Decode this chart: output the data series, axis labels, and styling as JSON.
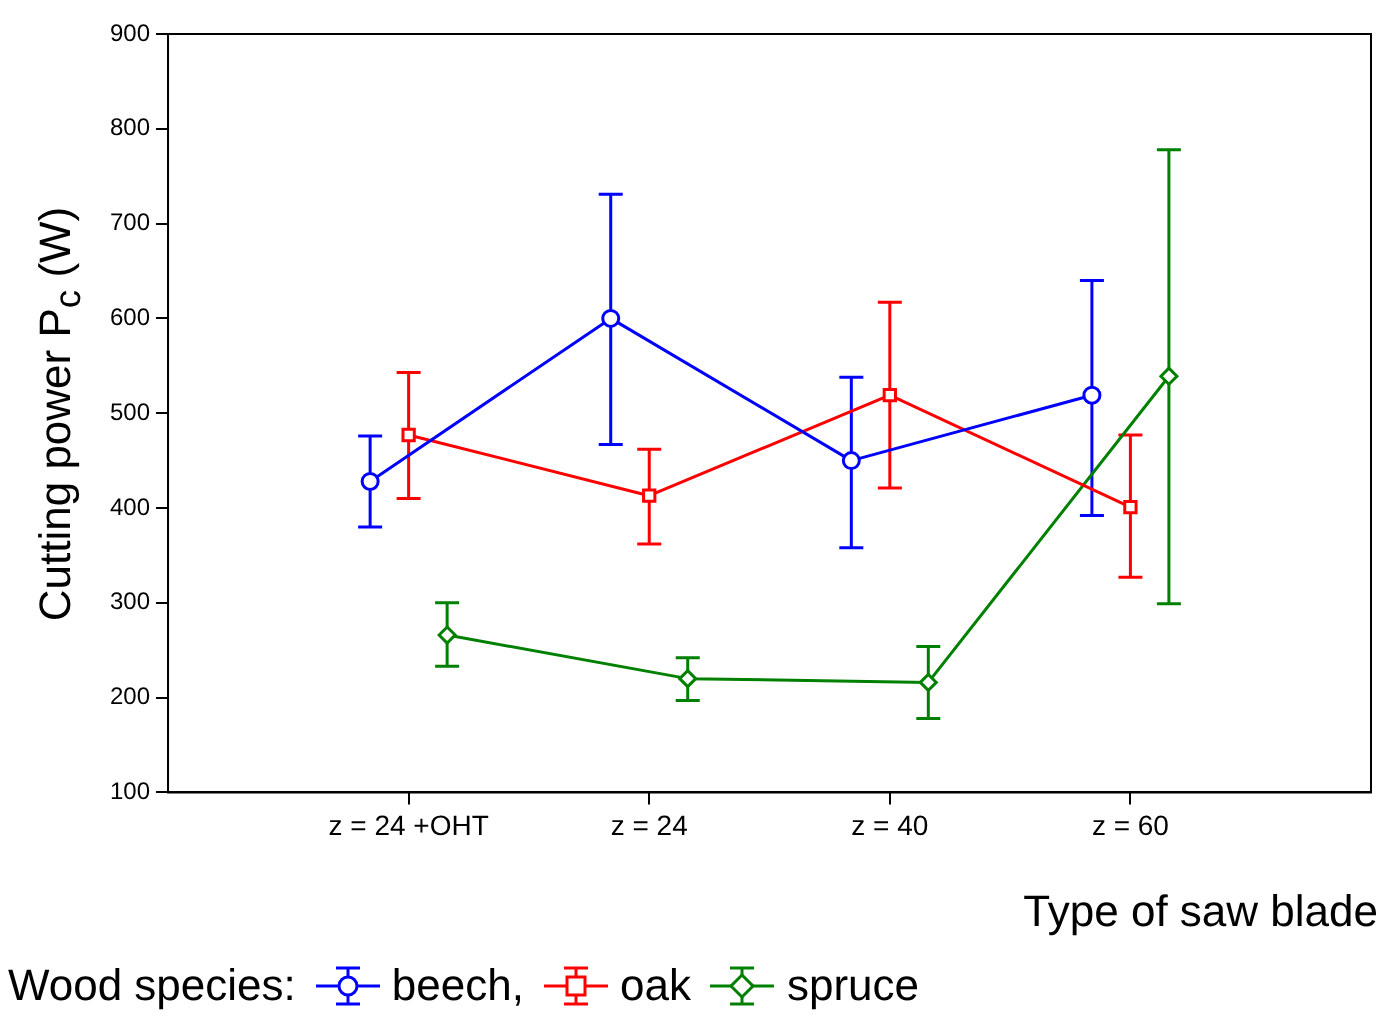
{
  "chart_data": {
    "type": "line",
    "xlabel": "Type of saw blade",
    "ylabel": "Cutting power P$_{c}$ (W)",
    "legend_title": "Wood species:",
    "legend": "bottom",
    "grid": false,
    "categories": [
      "z = 24 +OHT",
      "z = 24",
      "z = 40",
      "z = 60"
    ],
    "ylim": [
      100,
      900
    ],
    "yticks": [
      100,
      200,
      300,
      400,
      500,
      600,
      700,
      800,
      900
    ],
    "series": [
      {
        "name": "beech,",
        "color": "#0000ff",
        "marker": "circle",
        "values": [
          428,
          600,
          450,
          519
        ],
        "errors": [
          [
            380,
            476
          ],
          [
            467,
            731
          ],
          [
            358,
            538
          ],
          [
            392,
            640
          ]
        ]
      },
      {
        "name": "oak",
        "color": "#ff0000",
        "marker": "square",
        "values": [
          477,
          413,
          519,
          401
        ],
        "errors": [
          [
            410,
            543
          ],
          [
            362,
            462
          ],
          [
            421,
            617
          ],
          [
            327,
            477
          ]
        ]
      },
      {
        "name": "spruce",
        "color": "#008000",
        "marker": "diamond",
        "values": [
          266,
          220,
          216,
          539
        ],
        "errors": [
          [
            233,
            300
          ],
          [
            197,
            242
          ],
          [
            178,
            254
          ],
          [
            299,
            778
          ]
        ]
      }
    ]
  }
}
